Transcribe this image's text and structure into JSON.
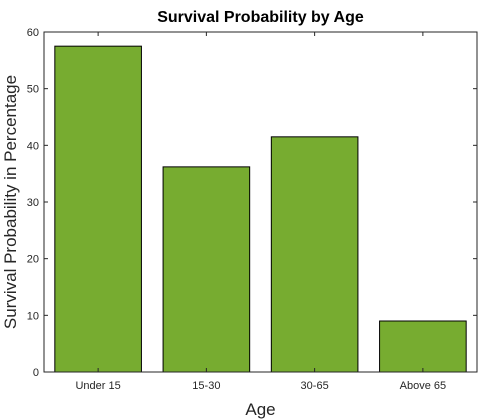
{
  "chart_data": {
    "type": "bar",
    "title": "Survival Probability by Age",
    "xlabel": "Age",
    "ylabel": "Survival Probability in Percentage",
    "categories": [
      "Under 15",
      "15-30",
      "30-65",
      "Above 65"
    ],
    "values": [
      57.5,
      36.2,
      41.5,
      9.0
    ],
    "ylim": [
      0,
      60
    ],
    "yticks": [
      0,
      10,
      20,
      30,
      40,
      50,
      60
    ],
    "grid": false,
    "legend": "none",
    "colors": {
      "bar": "#77AC30",
      "bar_edge": "#000000",
      "axis": "#262626"
    }
  }
}
